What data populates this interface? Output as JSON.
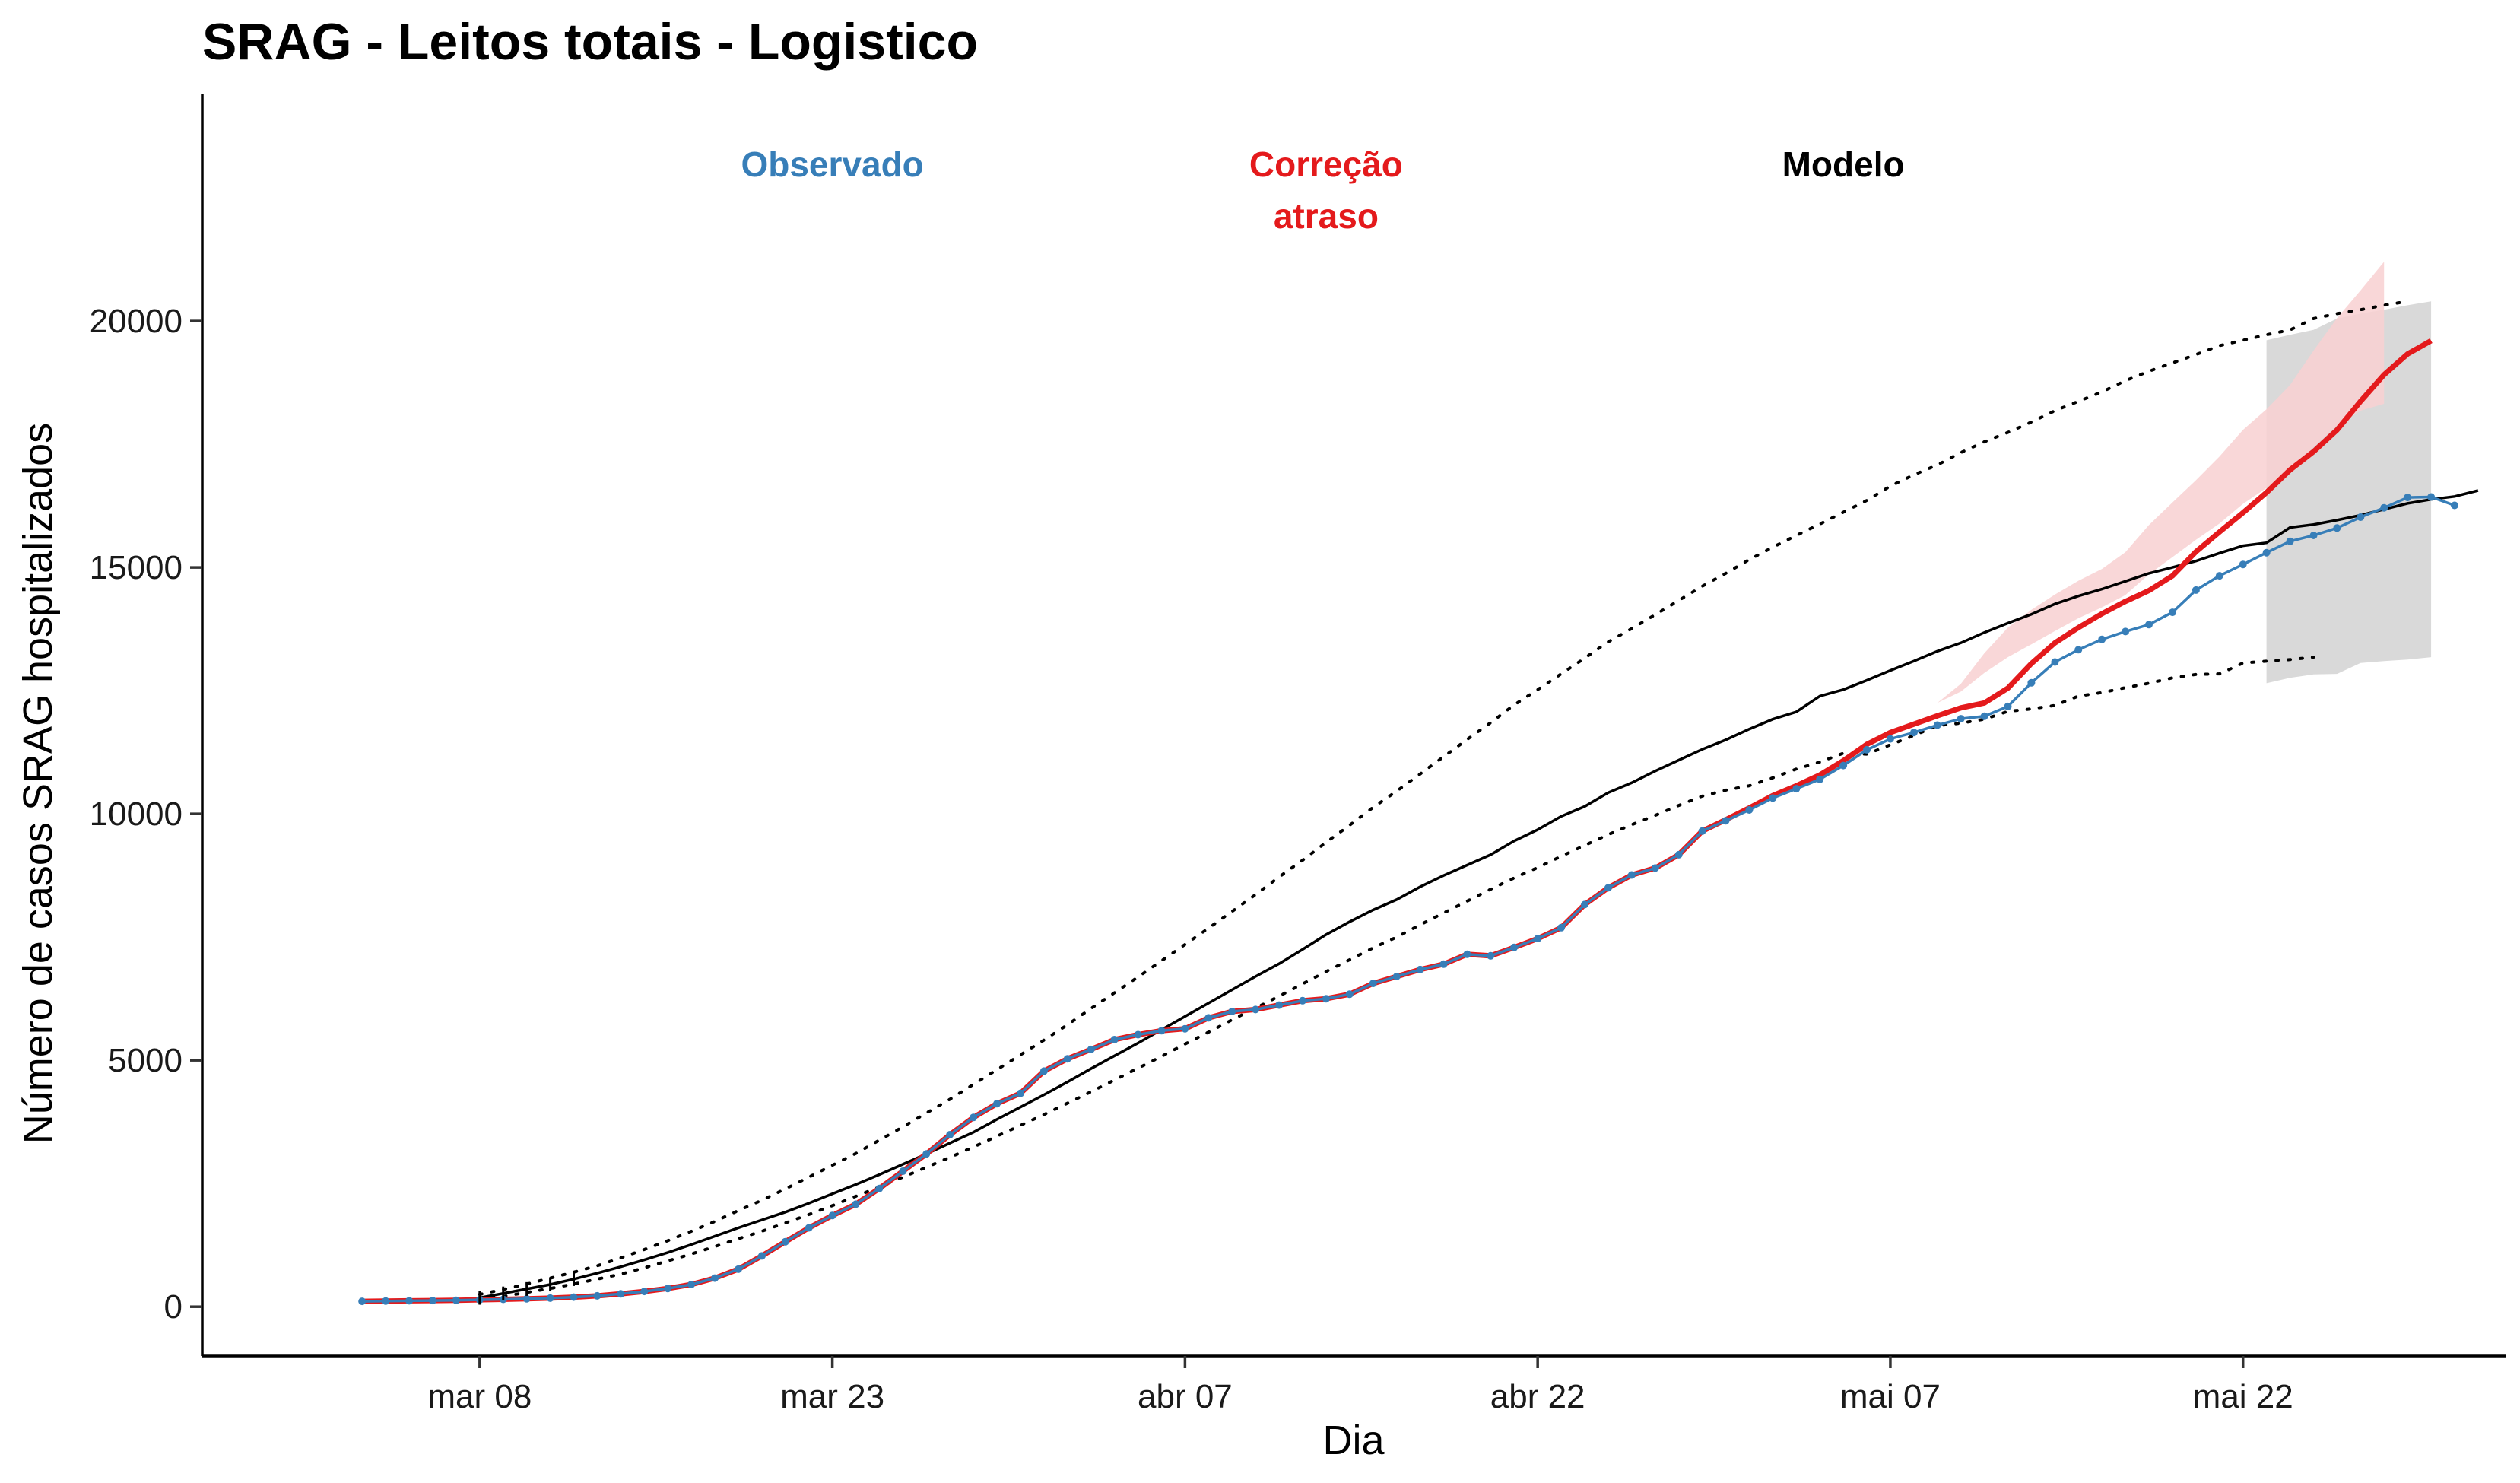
{
  "chart_data": {
    "type": "line",
    "title": "SRAG - Leitos totais - Logistico",
    "xlabel": "Dia",
    "ylabel": "Número de casos SRAG hospitalizados",
    "x_ticks": [
      "mar 08",
      "mar 23",
      "abr 07",
      "abr 22",
      "mai 07",
      "mai 22"
    ],
    "x_tick_days": [
      7,
      22,
      37,
      52,
      67,
      82
    ],
    "x_origin": "mar 01",
    "xlim": [
      -4.8,
      93.2
    ],
    "y_ticks": [
      0,
      5000,
      10000,
      15000,
      20000
    ],
    "ylim": [
      -1000,
      24600
    ],
    "grid": false,
    "legend_labels": [
      {
        "text_lines": [
          "Observado"
        ],
        "color": "#377eb8",
        "day": 22
      },
      {
        "text_lines": [
          "Correção",
          "atraso"
        ],
        "color": "#e41a1c",
        "day": 43
      },
      {
        "text_lines": [
          "Modelo"
        ],
        "color": "#000000",
        "day": 65
      }
    ],
    "series": [
      {
        "name": "Observado",
        "color": "#377eb8",
        "start_day": 2,
        "values": [
          110,
          115,
          120,
          125,
          130,
          140,
          150,
          160,
          175,
          195,
          220,
          260,
          310,
          370,
          450,
          580,
          760,
          1030,
          1320,
          1600,
          1850,
          2080,
          2400,
          2750,
          3100,
          3490,
          3840,
          4120,
          4330,
          4780,
          5030,
          5220,
          5420,
          5520,
          5600,
          5640,
          5860,
          5990,
          6030,
          6120,
          6210,
          6250,
          6340,
          6560,
          6700,
          6840,
          6950,
          7150,
          7120,
          7290,
          7470,
          7690,
          8160,
          8500,
          8760,
          8900,
          9170,
          9650,
          9860,
          10080,
          10320,
          10510,
          10700,
          10980,
          11300,
          11520,
          11650,
          11800,
          11930,
          11980,
          12180,
          12660,
          13080,
          13330,
          13540,
          13700,
          13840,
          14090,
          14540,
          14830,
          15060,
          15300,
          15530,
          15650,
          15800,
          16020,
          16210,
          16420,
          16430,
          16260
        ]
      },
      {
        "name": "Correção atraso",
        "color": "#e41a1c",
        "start_day": 2,
        "values": [
          110,
          115,
          120,
          125,
          130,
          140,
          150,
          160,
          175,
          195,
          220,
          260,
          310,
          370,
          450,
          580,
          760,
          1030,
          1320,
          1600,
          1850,
          2080,
          2400,
          2750,
          3100,
          3490,
          3840,
          4120,
          4330,
          4780,
          5030,
          5220,
          5420,
          5520,
          5600,
          5640,
          5860,
          5990,
          6030,
          6120,
          6210,
          6250,
          6340,
          6560,
          6700,
          6840,
          6950,
          7150,
          7120,
          7290,
          7470,
          7690,
          8160,
          8500,
          8760,
          8900,
          9170,
          9650,
          9880,
          10120,
          10370,
          10570,
          10790,
          11080,
          11410,
          11650,
          11820,
          11990,
          12150,
          12250,
          12550,
          13050,
          13470,
          13780,
          14060,
          14310,
          14530,
          14830,
          15320,
          15720,
          16110,
          16520,
          16980,
          17350,
          17790,
          18370,
          18910,
          19330,
          19600
        ],
        "band_start_day": 69,
        "band_lower": [
          12250,
          12480,
          12860,
          13180,
          13440,
          13710,
          13970,
          14190,
          14440,
          14860,
          15210,
          15560,
          15890,
          16290,
          16610,
          16970,
          17440,
          17880,
          18180,
          18320
        ],
        "band_upper": [
          12250,
          12640,
          13260,
          13780,
          14140,
          14450,
          14730,
          14970,
          15310,
          15860,
          16320,
          16770,
          17250,
          17790,
          18210,
          18700,
          19400,
          20060,
          20620,
          21200
        ]
      },
      {
        "name": "Modelo",
        "color": "#000000",
        "start_day": 7,
        "values": [
          180,
          270,
          360,
          450,
          560,
          680,
          810,
          950,
          1100,
          1260,
          1430,
          1600,
          1760,
          1920,
          2100,
          2290,
          2480,
          2680,
          2890,
          3100,
          3320,
          3540,
          3800,
          4050,
          4300,
          4560,
          4830,
          5090,
          5350,
          5620,
          5890,
          6160,
          6430,
          6700,
          6960,
          7250,
          7550,
          7810,
          8050,
          8260,
          8520,
          8750,
          8960,
          9170,
          9450,
          9680,
          9950,
          10150,
          10430,
          10630,
          10870,
          11090,
          11310,
          11500,
          11720,
          11920,
          12070,
          12390,
          12520,
          12710,
          12910,
          13100,
          13300,
          13470,
          13680,
          13870,
          14050,
          14260,
          14420,
          14560,
          14720,
          14880,
          15000,
          15130,
          15290,
          15440,
          15500,
          15810,
          15870,
          15960,
          16060,
          16180,
          16300,
          16380,
          16440,
          16560
        ],
        "forecast_start_day": 83,
        "forecast_lower": [
          12650,
          12760,
          12830,
          12840,
          13060,
          13100,
          13130,
          13180
        ],
        "forecast_upper": [
          19610,
          19720,
          19820,
          20050,
          20150,
          20230,
          20320,
          20400
        ],
        "dotted_upper": [
          250,
          350,
          460,
          580,
          700,
          830,
          990,
          1160,
          1340,
          1530,
          1730,
          1950,
          2160,
          2390,
          2630,
          2870,
          3110,
          3380,
          3650,
          3930,
          4210,
          4510,
          4810,
          5110,
          5410,
          5720,
          6050,
          6370,
          6690,
          7020,
          7350,
          7680,
          8020,
          8360,
          8720,
          9060,
          9420,
          9770,
          10130,
          10460,
          10810,
          11160,
          11510,
          11850,
          12210,
          12520,
          12840,
          13160,
          13490,
          13760,
          14040,
          14330,
          14620,
          14880,
          15160,
          15410,
          15650,
          15880,
          16120,
          16360,
          16650,
          16880,
          17080,
          17330,
          17550,
          17740,
          17950,
          18180,
          18370,
          18560,
          18790,
          18980,
          19150,
          19320,
          19500,
          19610,
          19720,
          19820,
          20050,
          20150,
          20230,
          20320,
          20400
        ],
        "dotted_lower": [
          150,
          210,
          290,
          370,
          460,
          560,
          660,
          790,
          930,
          1070,
          1220,
          1380,
          1530,
          1700,
          1870,
          2050,
          2240,
          2430,
          2630,
          2830,
          3030,
          3240,
          3460,
          3680,
          3900,
          4130,
          4360,
          4600,
          4840,
          5080,
          5330,
          5570,
          5820,
          6060,
          6300,
          6550,
          6800,
          7040,
          7280,
          7500,
          7750,
          7990,
          8230,
          8470,
          8700,
          8910,
          9140,
          9360,
          9580,
          9780,
          9970,
          10170,
          10360,
          10480,
          10570,
          10730,
          10910,
          11050,
          11230,
          11210,
          11400,
          11590,
          11790,
          11840,
          11920,
          12080,
          12130,
          12200,
          12390,
          12460,
          12560,
          12650,
          12760,
          12830,
          12840,
          13060,
          13100,
          13130,
          13180
        ]
      }
    ]
  }
}
